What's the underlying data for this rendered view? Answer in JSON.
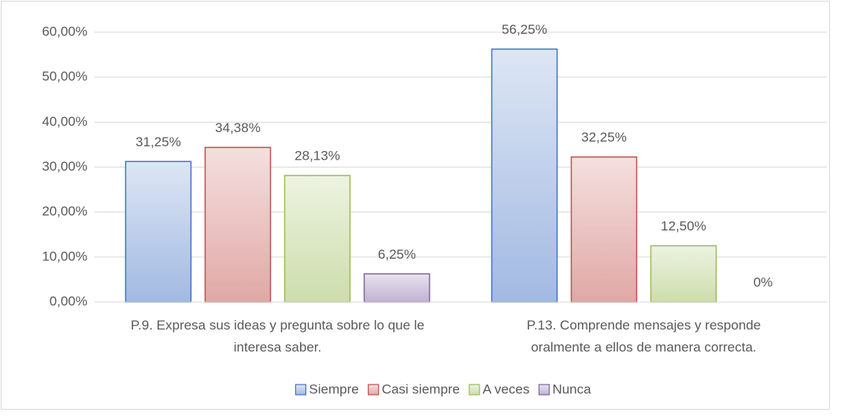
{
  "chart_data": {
    "type": "bar",
    "categories": [
      "P.9. Expresa sus ideas y pregunta sobre lo que le interesa saber.",
      "P.13. Comprende mensajes y responde oralmente a ellos de manera correcta."
    ],
    "series": [
      {
        "name": "Siempre",
        "color": "#4472c4",
        "values": [
          31.25,
          56.25
        ],
        "value_labels": [
          "31,25%",
          "56,25%"
        ]
      },
      {
        "name": "Casi siempre",
        "color": "#c0504d",
        "values": [
          34.38,
          32.25
        ],
        "value_labels": [
          "34,38%",
          "32,25%"
        ]
      },
      {
        "name": "A veces",
        "color": "#9bbb59",
        "values": [
          28.13,
          12.5
        ],
        "value_labels": [
          "28,13%",
          "12,50%"
        ]
      },
      {
        "name": "Nunca",
        "color": "#8064a2",
        "values": [
          6.25,
          0
        ],
        "value_labels": [
          "6,25%",
          "0%"
        ]
      }
    ],
    "ylim": [
      0,
      60
    ],
    "yticks": [
      {
        "value": 0,
        "label": "0,00%"
      },
      {
        "value": 10,
        "label": "10,00%"
      },
      {
        "value": 20,
        "label": "20,00%"
      },
      {
        "value": 30,
        "label": "30,00%"
      },
      {
        "value": 40,
        "label": "40,00%"
      },
      {
        "value": 50,
        "label": "50,00%"
      },
      {
        "value": 60,
        "label": "60,00%"
      }
    ],
    "grid": true,
    "legend": "bottom"
  }
}
